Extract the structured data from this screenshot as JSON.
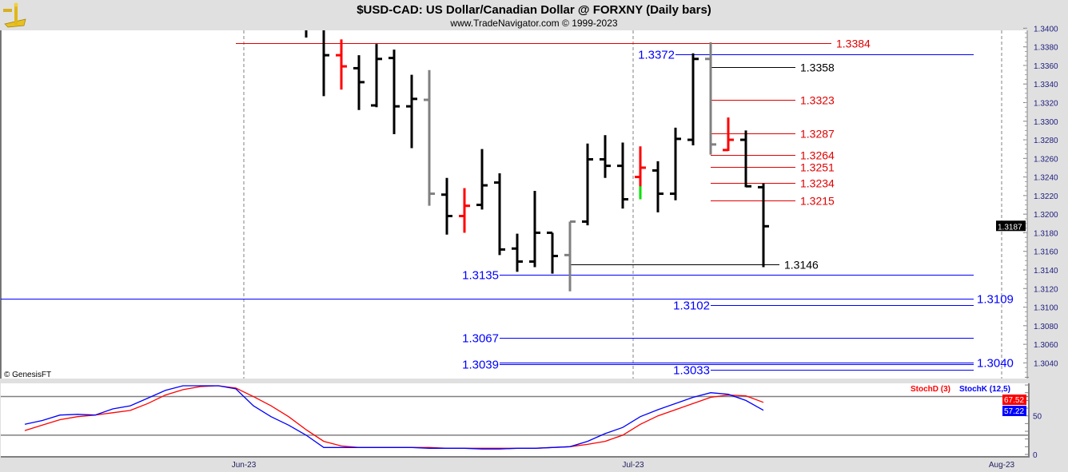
{
  "header": {
    "title": "$USD-CAD:  US Dollar/Canadian Dollar @ FORXNY  (Daily bars)",
    "subtitle": "www.TradeNavigator.com © 1999-2023",
    "logo": "sextant-logo"
  },
  "watermark": "© GenesisFT",
  "colors": {
    "up_bar": "#000000",
    "neutral_bar": "#808080",
    "red_bar": "#ff0000",
    "green_segment": "#00e000",
    "resistance": "#e00000",
    "support": "#0000ff",
    "stochD": "#ff0000",
    "stochK": "#0000ff"
  },
  "chart_data": [
    {
      "type": "ohlc",
      "title": "$USD-CAD:  US Dollar/Canadian Dollar @ FORXNY  (Daily bars)",
      "ylim": [
        1.3025,
        1.3402
      ],
      "yticks": [
        "1.3400",
        "1.3380",
        "1.3360",
        "1.3340",
        "1.3320",
        "1.3300",
        "1.3280",
        "1.3260",
        "1.3240",
        "1.3220",
        "1.3200",
        "1.3180",
        "1.3160",
        "1.3140",
        "1.3120",
        "1.3100",
        "1.3080",
        "1.3060",
        "1.3040"
      ],
      "xticks": [
        "Jun-23",
        "Jul-23",
        "Aug-23"
      ],
      "last_price": "1.3187",
      "grid": "vertical dashed at month starts",
      "bars": [
        {
          "o": null,
          "h": 1.3405,
          "l": 1.339,
          "c": null,
          "color": "black"
        },
        {
          "o": null,
          "h": 1.34,
          "l": 1.3327,
          "c": 1.3371,
          "color": "black"
        },
        {
          "o": 1.3371,
          "h": 1.3388,
          "l": 1.3334,
          "c": 1.3359,
          "color": "red"
        },
        {
          "o": 1.3357,
          "h": 1.3371,
          "l": 1.3312,
          "c": 1.3342,
          "color": "black"
        },
        {
          "o": 1.3317,
          "h": 1.3383,
          "l": 1.3315,
          "c": 1.3367,
          "color": "black"
        },
        {
          "o": 1.3368,
          "h": 1.3377,
          "l": 1.3286,
          "c": 1.3316,
          "color": "black"
        },
        {
          "o": 1.3316,
          "h": 1.335,
          "l": 1.3271,
          "c": 1.3324,
          "color": "black"
        },
        {
          "o": 1.3323,
          "h": 1.3355,
          "l": 1.3209,
          "c": 1.3222,
          "color": "gray"
        },
        {
          "o": 1.3221,
          "h": 1.3239,
          "l": 1.3178,
          "c": 1.3198,
          "color": "black"
        },
        {
          "o": 1.3198,
          "h": 1.3228,
          "l": 1.318,
          "c": 1.3209,
          "color": "red"
        },
        {
          "o": 1.321,
          "h": 1.327,
          "l": 1.3205,
          "c": 1.3231,
          "color": "black"
        },
        {
          "o": 1.3234,
          "h": 1.3244,
          "l": 1.3156,
          "c": 1.3162,
          "color": "black"
        },
        {
          "o": 1.3163,
          "h": 1.3179,
          "l": 1.3138,
          "c": 1.3149,
          "color": "black"
        },
        {
          "o": 1.3149,
          "h": 1.3225,
          "l": 1.3143,
          "c": 1.318,
          "color": "black"
        },
        {
          "o": 1.318,
          "h": 1.318,
          "l": 1.3136,
          "c": 1.3155,
          "color": "black"
        },
        {
          "o": 1.3156,
          "h": 1.3192,
          "l": 1.3117,
          "c": 1.3192,
          "color": "gray"
        },
        {
          "o": 1.3192,
          "h": 1.3276,
          "l": 1.3188,
          "c": 1.3259,
          "color": "black"
        },
        {
          "o": 1.3259,
          "h": 1.3285,
          "l": 1.3239,
          "c": 1.3252,
          "color": "black"
        },
        {
          "o": 1.3252,
          "h": 1.3277,
          "l": 1.3206,
          "c": 1.3216,
          "color": "black"
        },
        {
          "o": 1.324,
          "h": 1.3273,
          "l": 1.3216,
          "c": 1.325,
          "color": "red",
          "green_below": 1.323
        },
        {
          "o": 1.3247,
          "h": 1.3257,
          "l": 1.3202,
          "c": 1.3222,
          "color": "black"
        },
        {
          "o": 1.3222,
          "h": 1.3293,
          "l": 1.3215,
          "c": 1.3281,
          "color": "black"
        },
        {
          "o": 1.328,
          "h": 1.3373,
          "l": 1.3274,
          "c": 1.3367,
          "color": "black"
        },
        {
          "o": 1.3367,
          "h": 1.3385,
          "l": 1.3264,
          "c": 1.3275,
          "color": "gray"
        },
        {
          "o": 1.3269,
          "h": 1.3304,
          "l": 1.3268,
          "c": 1.328,
          "color": "red"
        },
        {
          "o": 1.328,
          "h": 1.329,
          "l": 1.3229,
          "c": 1.323,
          "color": "black"
        },
        {
          "o": 1.3229,
          "h": 1.3233,
          "l": 1.3143,
          "c": 1.3187,
          "color": "black"
        }
      ],
      "levels": [
        {
          "price": 1.3384,
          "label": "1.3384",
          "color": "red",
          "label_side": "right"
        },
        {
          "price": 1.3372,
          "label": "1.3372",
          "color": "blue",
          "label_side": "left"
        },
        {
          "price": 1.3358,
          "label": "1.3358",
          "color": "black",
          "label_side": "right"
        },
        {
          "price": 1.3323,
          "label": "1.3323",
          "color": "red",
          "label_side": "right"
        },
        {
          "price": 1.3287,
          "label": "1.3287",
          "color": "red",
          "label_side": "right"
        },
        {
          "price": 1.3264,
          "label": "1.3264",
          "color": "red",
          "label_side": "right"
        },
        {
          "price": 1.3251,
          "label": "1.3251",
          "color": "red",
          "label_side": "right"
        },
        {
          "price": 1.3234,
          "label": "1.3234",
          "color": "red",
          "label_side": "right"
        },
        {
          "price": 1.3215,
          "label": "1.3215",
          "color": "red",
          "label_side": "right"
        },
        {
          "price": 1.3146,
          "label": "1.3146",
          "color": "black",
          "label_side": "right"
        },
        {
          "price": 1.3135,
          "label": "1.3135",
          "color": "blue",
          "label_side": "left"
        },
        {
          "price": 1.3109,
          "label": "1.3109",
          "color": "blue",
          "label_side": "right"
        },
        {
          "price": 1.3102,
          "label": "1.3102",
          "color": "blue",
          "label_side": "left"
        },
        {
          "price": 1.3067,
          "label": "1.3067",
          "color": "blue",
          "label_side": "left"
        },
        {
          "price": 1.3039,
          "label": "1.3039",
          "color": "blue",
          "label_side": "left"
        },
        {
          "price": 1.304,
          "label": "1.3040",
          "color": "blue",
          "label_side": "right"
        },
        {
          "price": 1.3033,
          "label": "1.3033",
          "color": "blue",
          "label_side": "left"
        }
      ]
    },
    {
      "type": "line",
      "ylim": [
        0,
        100
      ],
      "yticks": [
        "50",
        "0"
      ],
      "reference_lines": [
        25,
        75
      ],
      "legend": "top-right",
      "series": [
        {
          "name": "StochD (3)",
          "last": "67.52",
          "values": [
            31,
            38,
            45,
            49,
            51,
            54,
            57,
            66,
            77,
            84,
            88,
            89,
            86,
            75,
            63,
            49,
            32,
            17,
            11,
            9,
            9,
            9,
            9,
            9,
            8,
            8,
            8,
            8,
            8,
            8,
            9,
            10,
            13,
            17,
            25,
            39,
            50,
            58,
            66,
            74,
            77,
            76,
            67.52
          ]
        },
        {
          "name": "StochK (12,5)",
          "last": "57.22",
          "values": [
            39,
            44,
            51,
            52,
            51,
            59,
            63,
            73,
            83,
            89,
            89,
            89,
            85,
            63,
            49,
            38,
            25,
            9,
            9,
            9,
            9,
            9,
            9,
            8,
            8,
            8,
            7,
            7,
            8,
            8,
            9,
            10,
            17,
            27,
            35,
            49,
            58,
            66,
            74,
            80,
            78,
            70,
            57.22
          ]
        }
      ]
    }
  ]
}
